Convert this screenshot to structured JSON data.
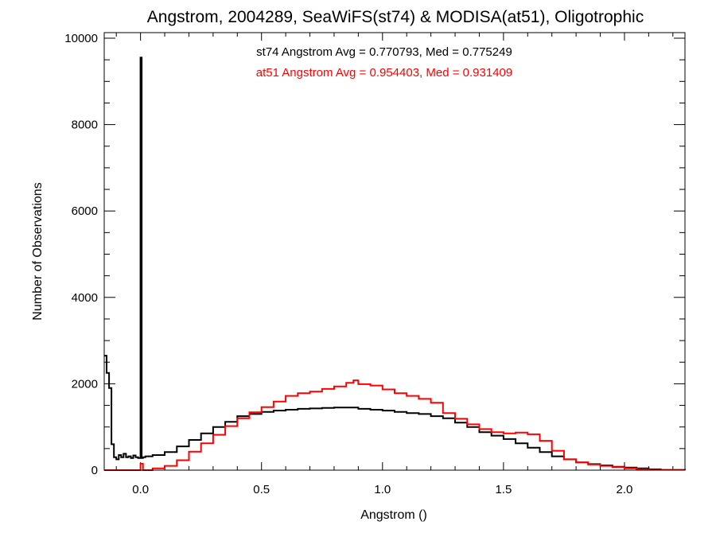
{
  "chart_data": {
    "type": "line",
    "title": "Angstrom, 2004289, SeaWiFS(st74) & MODISA(at51), Oligotrophic",
    "xlabel": "Angstrom ()",
    "ylabel": "Number of Observations",
    "xlim": [
      -0.15,
      2.25
    ],
    "ylim": [
      0,
      10000
    ],
    "x_ticks": [
      0.0,
      0.5,
      1.0,
      1.5,
      2.0
    ],
    "x_tick_labels": [
      "0.0",
      "0.5",
      "1.0",
      "1.5",
      "2.0"
    ],
    "y_ticks": [
      0,
      2000,
      4000,
      6000,
      8000,
      10000
    ],
    "y_tick_labels": [
      "0",
      "2000",
      "4000",
      "6000",
      "8000",
      "10000"
    ],
    "grid": false,
    "annotations": [
      {
        "text": "st74 Angstrom Avg = 0.770793, Med = 0.775249",
        "color": "#000000"
      },
      {
        "text": "at51 Angstrom Avg = 0.954403, Med = 0.931409",
        "color": "#ff0000"
      }
    ],
    "series": [
      {
        "color": "#000000",
        "style": "step",
        "x": [
          -0.15,
          -0.14,
          -0.13,
          -0.12,
          -0.11,
          -0.1,
          -0.09,
          -0.08,
          -0.07,
          -0.06,
          -0.05,
          -0.04,
          -0.03,
          -0.02,
          -0.01,
          0.0,
          0.005,
          0.01,
          0.02,
          0.05,
          0.1,
          0.15,
          0.2,
          0.25,
          0.3,
          0.35,
          0.4,
          0.45,
          0.5,
          0.55,
          0.6,
          0.65,
          0.7,
          0.75,
          0.8,
          0.85,
          0.9,
          0.95,
          1.0,
          1.05,
          1.1,
          1.15,
          1.2,
          1.25,
          1.3,
          1.35,
          1.4,
          1.45,
          1.5,
          1.55,
          1.6,
          1.65,
          1.7,
          1.75,
          1.8,
          1.85,
          1.9,
          1.95,
          2.0,
          2.05,
          2.1,
          2.15,
          2.25
        ],
        "y": [
          2650,
          2250,
          1900,
          600,
          300,
          250,
          350,
          300,
          380,
          300,
          320,
          280,
          340,
          300,
          280,
          9550,
          280,
          300,
          320,
          350,
          420,
          550,
          700,
          850,
          1000,
          1120,
          1250,
          1300,
          1350,
          1380,
          1400,
          1420,
          1430,
          1440,
          1450,
          1450,
          1420,
          1400,
          1380,
          1350,
          1320,
          1300,
          1250,
          1200,
          1100,
          1000,
          880,
          800,
          720,
          620,
          520,
          420,
          320,
          250,
          180,
          140,
          110,
          80,
          60,
          40,
          20,
          10,
          0
        ]
      },
      {
        "color": "#ff0000",
        "style": "step",
        "x": [
          -0.15,
          -0.05,
          -0.01,
          0.0,
          0.01,
          0.05,
          0.1,
          0.15,
          0.2,
          0.25,
          0.3,
          0.35,
          0.4,
          0.45,
          0.5,
          0.55,
          0.6,
          0.65,
          0.7,
          0.75,
          0.8,
          0.85,
          0.88,
          0.9,
          0.95,
          1.0,
          1.05,
          1.1,
          1.15,
          1.2,
          1.25,
          1.3,
          1.35,
          1.4,
          1.45,
          1.5,
          1.55,
          1.6,
          1.65,
          1.7,
          1.75,
          1.8,
          1.85,
          1.9,
          1.95,
          2.0,
          2.05,
          2.1,
          2.25
        ],
        "y": [
          0,
          0,
          0,
          150,
          0,
          40,
          100,
          230,
          430,
          620,
          820,
          1020,
          1200,
          1340,
          1460,
          1590,
          1720,
          1780,
          1820,
          1880,
          1940,
          2020,
          2080,
          1990,
          1960,
          1870,
          1780,
          1720,
          1650,
          1560,
          1320,
          1190,
          1060,
          950,
          880,
          850,
          870,
          830,
          680,
          450,
          250,
          180,
          130,
          100,
          70,
          40,
          20,
          10,
          0
        ]
      }
    ]
  }
}
